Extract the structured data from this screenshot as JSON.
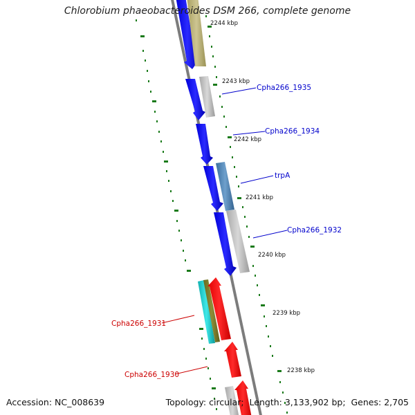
{
  "title": "Chlorobium phaeobacteroides DSM 266, complete genome",
  "footer": {
    "accession_label": "Accession:",
    "accession_value": "NC_008639",
    "topology_label": "Topology:",
    "topology_value": "circular",
    "length_label": "Length:",
    "length_value": "3,133,902 bp",
    "genes_label": "Genes:",
    "genes_value": "2,705"
  },
  "ticks": [
    {
      "label": "2244 kbp"
    },
    {
      "label": "2243 kbp"
    },
    {
      "label": "2242 kbp"
    },
    {
      "label": "2241 kbp"
    },
    {
      "label": "2240 kbp"
    },
    {
      "label": "2239 kbp"
    },
    {
      "label": "2238 kbp"
    }
  ],
  "gene_labels": [
    {
      "text": "Cpha266_1935",
      "color": "#0000cc"
    },
    {
      "text": "Cpha266_1934",
      "color": "#0000cc"
    },
    {
      "text": "trpA",
      "color": "#0000cc"
    },
    {
      "text": "Cpha266_1932",
      "color": "#0000cc"
    },
    {
      "text": "Cpha266_1931",
      "color": "#cc0000"
    },
    {
      "text": "Cpha266_1930",
      "color": "#cc0000"
    }
  ],
  "colors": {
    "forward_cds": "#0000ee",
    "reverse_cds": "#ff0000",
    "backbone": "#888888",
    "tick": "#1a7a1a",
    "gray_feature": "#bdbdbd",
    "khaki_feature": "#bdb478",
    "steel_feature": "#4f86b8",
    "cyan_feature": "#1ecbcb",
    "olive_feature": "#7a7a2a"
  }
}
